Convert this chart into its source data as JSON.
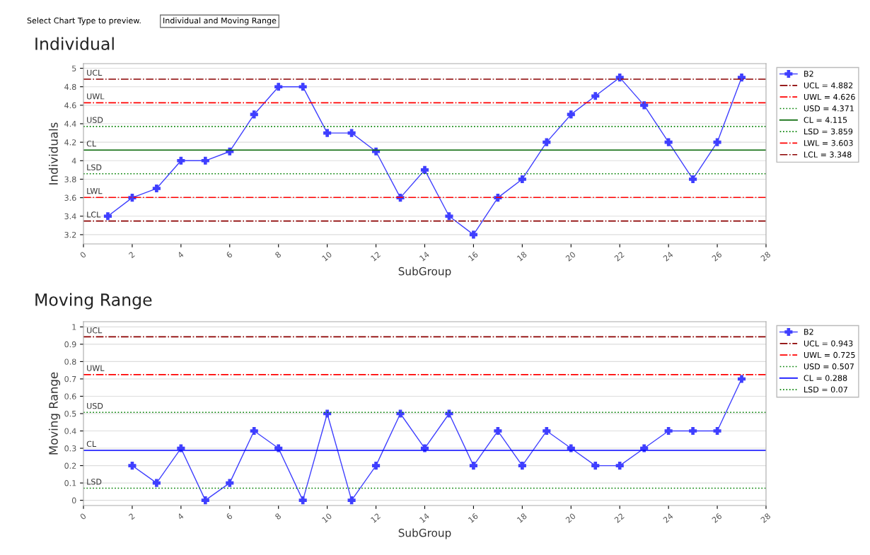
{
  "chart_data": [
    {
      "type": "line",
      "title": "Individual",
      "xlabel": "SubGroup",
      "ylabel": "Individuals",
      "xlim": [
        0,
        28
      ],
      "xticks": [
        0,
        2,
        4,
        6,
        8,
        10,
        12,
        14,
        16,
        18,
        20,
        22,
        24,
        26,
        28
      ],
      "ylim": [
        3.1,
        5.05
      ],
      "yticks": [
        3.2,
        3.4,
        3.6,
        3.8,
        4,
        4.2,
        4.4,
        4.6,
        4.8,
        5
      ],
      "grid": "y",
      "legend": "right",
      "marker": "cross",
      "series": [
        {
          "name": "B2",
          "color": "#3f3fff",
          "x": [
            1,
            2,
            3,
            4,
            5,
            6,
            7,
            8,
            9,
            10,
            11,
            12,
            13,
            14,
            15,
            16,
            17,
            18,
            19,
            20,
            21,
            22,
            23,
            24,
            25,
            26,
            27
          ],
          "values": [
            3.4,
            3.6,
            3.7,
            4.0,
            4.0,
            4.1,
            4.5,
            4.8,
            4.8,
            4.3,
            4.3,
            4.1,
            3.6,
            3.9,
            3.4,
            3.2,
            3.6,
            3.8,
            4.2,
            4.5,
            4.7,
            4.9,
            4.6,
            4.2,
            3.8,
            4.2,
            4.9
          ]
        },
        {
          "name": "UCL = 4.882",
          "color": "#8b0000",
          "line_style": "dashed",
          "marker": "none",
          "x": [
            0,
            28
          ],
          "values": [
            4.882,
            4.882
          ]
        },
        {
          "name": "UWL = 4.626",
          "color": "#ff0000",
          "line_style": "dashed",
          "marker": "none",
          "x": [
            0,
            28
          ],
          "values": [
            4.626,
            4.626
          ]
        },
        {
          "name": "USD = 4.371",
          "color": "#008000",
          "line_style": "dotted",
          "marker": "none",
          "x": [
            0,
            28
          ],
          "values": [
            4.371,
            4.371
          ]
        },
        {
          "name": "CL = 4.115",
          "color": "#006400",
          "line_style": "solid",
          "marker": "none",
          "x": [
            0,
            28
          ],
          "values": [
            4.115,
            4.115
          ]
        },
        {
          "name": "LSD = 3.859",
          "color": "#008000",
          "line_style": "dotted",
          "marker": "none",
          "x": [
            0,
            28
          ],
          "values": [
            3.859,
            3.859
          ]
        },
        {
          "name": "LWL = 3.603",
          "color": "#ff0000",
          "line_style": "dashed",
          "marker": "none",
          "x": [
            0,
            28
          ],
          "values": [
            3.603,
            3.603
          ]
        },
        {
          "name": "LCL = 3.348",
          "color": "#8b0000",
          "line_style": "dashed",
          "marker": "none",
          "x": [
            0,
            28
          ],
          "values": [
            3.348,
            3.348
          ]
        }
      ],
      "annotations": [
        "Select Chart Type to preview.",
        "Individual and Moving Range",
        {
          "text": "UCL",
          "y": 4.882
        },
        {
          "text": "UWL",
          "y": 4.626
        },
        {
          "text": "USD",
          "y": 4.371
        },
        {
          "text": "CL",
          "y": 4.115
        },
        {
          "text": "LSD",
          "y": 3.859
        },
        {
          "text": "LWL",
          "y": 3.603
        },
        {
          "text": "LCL",
          "y": 3.348
        }
      ]
    },
    {
      "type": "line",
      "title": "Moving Range",
      "xlabel": "SubGroup",
      "ylabel": "Moving Range",
      "xlim": [
        0,
        28
      ],
      "xticks": [
        0,
        2,
        4,
        6,
        8,
        10,
        12,
        14,
        16,
        18,
        20,
        22,
        24,
        26,
        28
      ],
      "ylim": [
        -0.03,
        1.03
      ],
      "yticks": [
        0,
        0.1,
        0.2,
        0.3,
        0.4,
        0.5,
        0.6,
        0.7,
        0.8,
        0.9,
        1
      ],
      "grid": "y",
      "legend": "right",
      "marker": "cross",
      "series": [
        {
          "name": "B2",
          "color": "#3f3fff",
          "x": [
            2,
            3,
            4,
            5,
            6,
            7,
            8,
            9,
            10,
            11,
            12,
            13,
            14,
            15,
            16,
            17,
            18,
            19,
            20,
            21,
            22,
            23,
            24,
            25,
            26,
            27
          ],
          "values": [
            0.2,
            0.1,
            0.3,
            0,
            0.1,
            0.4,
            0.3,
            0,
            0.5,
            0,
            0.2,
            0.5,
            0.3,
            0.5,
            0.2,
            0.4,
            0.2,
            0.4,
            0.3,
            0.2,
            0.2,
            0.3,
            0.4,
            0.4,
            0.4,
            0.7
          ]
        },
        {
          "name": "UCL = 0.943",
          "color": "#8b0000",
          "line_style": "dashed",
          "marker": "none",
          "x": [
            0,
            28
          ],
          "values": [
            0.943,
            0.943
          ]
        },
        {
          "name": "UWL = 0.725",
          "color": "#ff0000",
          "line_style": "dashed",
          "marker": "none",
          "x": [
            0,
            28
          ],
          "values": [
            0.725,
            0.725
          ]
        },
        {
          "name": "USD = 0.507",
          "color": "#008000",
          "line_style": "dotted",
          "marker": "none",
          "x": [
            0,
            28
          ],
          "values": [
            0.507,
            0.507
          ]
        },
        {
          "name": "CL = 0.288",
          "color": "#0000ff",
          "line_style": "solid",
          "marker": "none",
          "x": [
            0,
            28
          ],
          "values": [
            0.288,
            0.288
          ]
        },
        {
          "name": "LSD = 0.07",
          "color": "#008000",
          "line_style": "dotted",
          "marker": "none",
          "x": [
            0,
            28
          ],
          "values": [
            0.07,
            0.07
          ]
        }
      ],
      "annotations": [
        {
          "text": "UCL",
          "y": 0.943
        },
        {
          "text": "UWL",
          "y": 0.725
        },
        {
          "text": "USD",
          "y": 0.507
        },
        {
          "text": "CL",
          "y": 0.288
        },
        {
          "text": "LSD",
          "y": 0.07
        }
      ]
    }
  ]
}
